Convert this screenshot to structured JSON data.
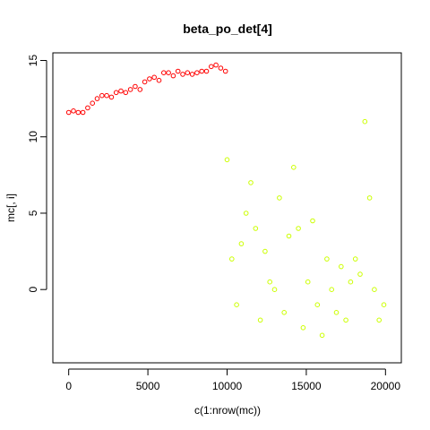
{
  "chart_data": {
    "type": "scatter",
    "title": "beta_po_det[4]",
    "xlabel": "c(1:nrow(mc))",
    "ylabel": "mc[, i]",
    "xlim": [
      -1000,
      21000
    ],
    "ylim": [
      -4.8,
      15.5
    ],
    "xticks": [
      "0",
      "5000",
      "10000",
      "15000",
      "20000"
    ],
    "yticks": [
      "0",
      "5",
      "10",
      "15"
    ],
    "grid": false,
    "legend": "none",
    "series": [
      {
        "color": "#ff0000",
        "marker": "open-circle",
        "x": [
          0,
          300,
          600,
          900,
          1200,
          1500,
          1800,
          2100,
          2400,
          2700,
          3000,
          3300,
          3600,
          3900,
          4200,
          4500,
          4800,
          5100,
          5400,
          5700,
          6000,
          6300,
          6600,
          6900,
          7200,
          7500,
          7800,
          8100,
          8400,
          8700,
          9000,
          9300,
          9600,
          9900
        ],
        "y": [
          11.6,
          11.7,
          11.6,
          11.6,
          11.9,
          12.2,
          12.5,
          12.7,
          12.7,
          12.6,
          12.9,
          13.0,
          12.9,
          13.1,
          13.3,
          13.1,
          13.6,
          13.8,
          13.9,
          13.7,
          14.2,
          14.2,
          14.0,
          14.3,
          14.1,
          14.2,
          14.1,
          14.2,
          14.3,
          14.3,
          14.6,
          14.7,
          14.5,
          14.3
        ]
      },
      {
        "color": "#ccff00",
        "marker": "open-circle",
        "x": [
          10000,
          10300,
          10600,
          10900,
          11200,
          11500,
          11800,
          12100,
          12400,
          12700,
          13000,
          13300,
          13600,
          13900,
          14200,
          14500,
          14800,
          15100,
          15400,
          15700,
          16000,
          16300,
          16600,
          16900,
          17200,
          17500,
          17800,
          18100,
          18400,
          18700,
          19000,
          19300,
          19600,
          19900
        ],
        "y": [
          8.5,
          2.0,
          -1.0,
          3.0,
          5.0,
          7.0,
          4.0,
          -2.0,
          2.5,
          0.5,
          0.0,
          6.0,
          -1.5,
          3.5,
          8.0,
          4.0,
          -2.5,
          0.5,
          4.5,
          -1.0,
          -3.0,
          2.0,
          0.0,
          -1.5,
          1.5,
          -2.0,
          0.5,
          2.0,
          1.0,
          11.0,
          6.0,
          0.0,
          -2.0,
          -1.0
        ]
      }
    ]
  }
}
